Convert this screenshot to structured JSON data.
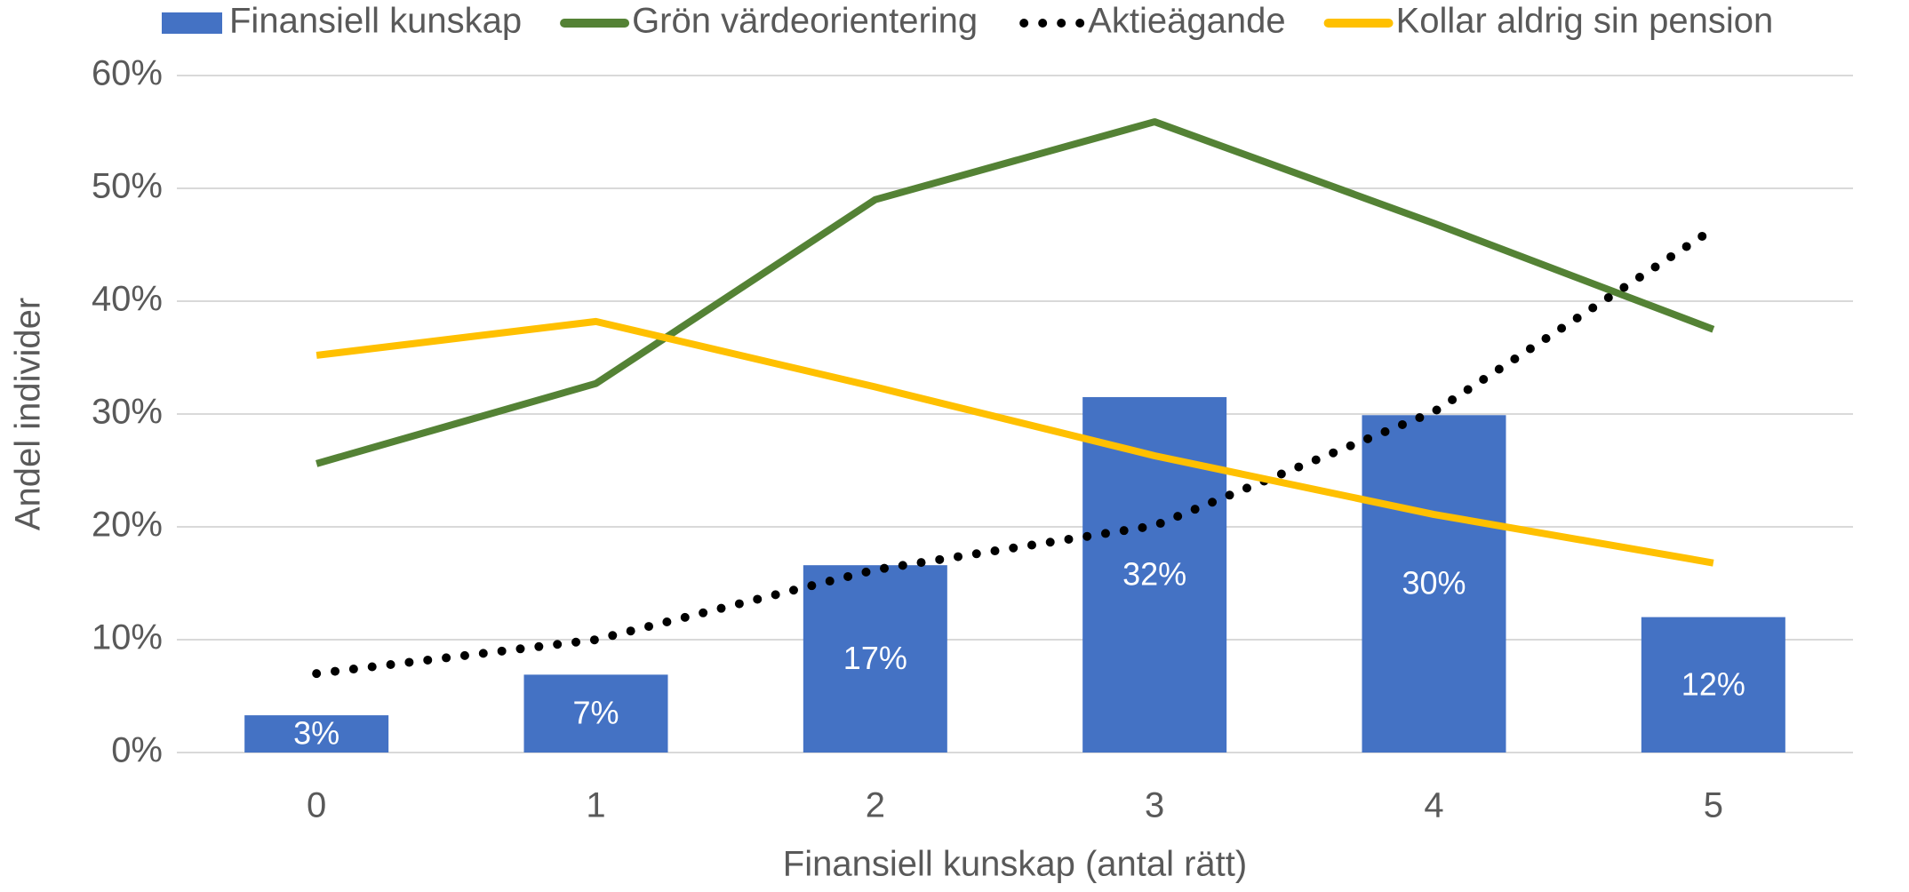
{
  "chart_data": {
    "type": "bar",
    "x_label": "Finansiell kunskap (antal rätt)",
    "y_label": "Andel individer",
    "categories": [
      "0",
      "1",
      "2",
      "3",
      "4",
      "5"
    ],
    "series": [
      {
        "name": "Finansiell kunskap",
        "type": "bar",
        "color": "#4472c4",
        "values": [
          3.3,
          6.9,
          16.6,
          31.5,
          29.9,
          12.0
        ],
        "value_labels": [
          "3%",
          "7%",
          "17%",
          "32%",
          "30%",
          "12%"
        ]
      },
      {
        "name": "Grön värdeorientering",
        "type": "line",
        "color": "#548235",
        "values": [
          25.6,
          32.7,
          49.0,
          55.9,
          46.9,
          37.5
        ]
      },
      {
        "name": "Aktieägande",
        "type": "line",
        "style": "dotted",
        "color": "#000000",
        "values": [
          7.0,
          10.0,
          16.2,
          20.1,
          30.2,
          46.4
        ]
      },
      {
        "name": "Kollar aldrig sin pension",
        "type": "line",
        "color": "#ffc000",
        "values": [
          35.2,
          38.2,
          32.4,
          26.3,
          21.1,
          16.8
        ]
      }
    ],
    "ylim": [
      0,
      60
    ],
    "yticks": [
      {
        "value": 0,
        "label": "0%"
      },
      {
        "value": 10,
        "label": "10%"
      },
      {
        "value": 20,
        "label": "20%"
      },
      {
        "value": 30,
        "label": "30%"
      },
      {
        "value": 40,
        "label": "40%"
      },
      {
        "value": 50,
        "label": "50%"
      },
      {
        "value": 60,
        "label": "60%"
      }
    ],
    "grid": true,
    "legend": "top"
  }
}
